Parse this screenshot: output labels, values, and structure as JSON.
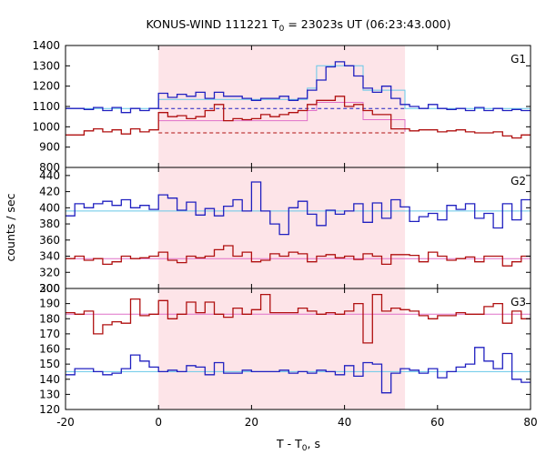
{
  "chart_data": {
    "type": "line",
    "title": "KONUS-WIND 111221 T",
    "title_sub": "0",
    "title_rest": " = 23023s UT (06:23:43.000)",
    "xlabel": "T - T",
    "xlabel_sub": "0",
    "xlabel_rest": ", s",
    "ylabel": "counts / sec",
    "xlim": [
      -20,
      80
    ],
    "xticks": [
      -20,
      0,
      20,
      40,
      60,
      80
    ],
    "shaded_interval": [
      0,
      53
    ],
    "colors": {
      "blue": "#2020c0",
      "red": "#b01010",
      "cyan": "#66c8e8",
      "pink": "#e070c8",
      "shade": "#fde4e8"
    },
    "panels": [
      {
        "label": "G1",
        "ylim": [
          800,
          1400
        ],
        "yticks": [
          800,
          900,
          1000,
          1100,
          1200,
          1300,
          1400
        ],
        "edges": [
          -20,
          -18,
          -16,
          -14,
          -12,
          -10,
          -8,
          -6,
          -4,
          -2,
          0,
          2,
          4,
          6,
          8,
          10,
          12,
          14,
          16,
          18,
          20,
          22,
          24,
          26,
          28,
          30,
          32,
          34,
          36,
          38,
          40,
          42,
          44,
          46,
          48,
          50,
          52,
          54,
          56,
          58,
          60,
          62,
          64,
          66,
          68,
          70,
          72,
          74,
          76,
          78,
          80
        ],
        "series": [
          {
            "color": "blue",
            "values": [
              1090,
              1090,
              1085,
              1095,
              1080,
              1095,
              1070,
              1090,
              1080,
              1090,
              1165,
              1145,
              1160,
              1150,
              1170,
              1140,
              1170,
              1150,
              1150,
              1140,
              1130,
              1140,
              1140,
              1150,
              1130,
              1140,
              1180,
              1230,
              1295,
              1320,
              1300,
              1250,
              1190,
              1170,
              1200,
              1140,
              1110,
              1100,
              1090,
              1110,
              1090,
              1085,
              1090,
              1080,
              1095,
              1080,
              1090,
              1080,
              1085,
              1080
            ]
          },
          {
            "color": "red",
            "values": [
              960,
              960,
              980,
              990,
              975,
              985,
              965,
              990,
              975,
              985,
              1070,
              1050,
              1055,
              1040,
              1050,
              1080,
              1110,
              1030,
              1040,
              1035,
              1040,
              1060,
              1050,
              1060,
              1070,
              1080,
              1110,
              1130,
              1130,
              1150,
              1100,
              1110,
              1080,
              1060,
              1060,
              990,
              990,
              980,
              985,
              985,
              975,
              980,
              985,
              975,
              970,
              970,
              975,
              955,
              945,
              960
            ]
          }
        ],
        "dashed_lines": [
          {
            "color": "blue",
            "from": 0,
            "to": 53,
            "y": 1090
          },
          {
            "color": "red",
            "from": 0,
            "to": 53,
            "y": 970
          }
        ],
        "fit_lines": [
          {
            "color": "cyan",
            "segments": [
              [
                -20,
                1090
              ],
              [
                0,
                1090
              ],
              [
                0,
                1135
              ],
              [
                32,
                1135
              ],
              [
                32,
                1190
              ],
              [
                34,
                1190
              ],
              [
                34,
                1300
              ],
              [
                44,
                1300
              ],
              [
                44,
                1180
              ],
              [
                53,
                1180
              ],
              [
                53,
                1090
              ],
              [
                80,
                1090
              ]
            ]
          },
          {
            "color": "pink",
            "segments": [
              [
                0,
                1030
              ],
              [
                32,
                1030
              ],
              [
                32,
                1080
              ],
              [
                34,
                1080
              ],
              [
                34,
                1120
              ],
              [
                44,
                1120
              ],
              [
                44,
                1035
              ],
              [
                53,
                1035
              ],
              [
                53,
                975
              ]
            ]
          }
        ]
      },
      {
        "label": "G2",
        "ylim": [
          300,
          450
        ],
        "yticks": [
          300,
          320,
          340,
          360,
          380,
          400,
          420,
          440
        ],
        "edges": [
          -20,
          -18,
          -16,
          -14,
          -12,
          -10,
          -8,
          -6,
          -4,
          -2,
          0,
          2,
          4,
          6,
          8,
          10,
          12,
          14,
          16,
          18,
          20,
          22,
          24,
          26,
          28,
          30,
          32,
          34,
          36,
          38,
          40,
          42,
          44,
          46,
          48,
          50,
          52,
          54,
          56,
          58,
          60,
          62,
          64,
          66,
          68,
          70,
          72,
          74,
          76,
          78,
          80
        ],
        "series": [
          {
            "color": "blue",
            "values": [
              390,
              405,
              400,
              405,
              408,
              403,
              410,
              400,
              403,
              398,
              416,
              412,
              397,
              407,
              391,
              399,
              390,
              402,
              410,
              396,
              432,
              396,
              380,
              367,
              400,
              408,
              392,
              378,
              397,
              392,
              396,
              405,
              382,
              406,
              387,
              410,
              401,
              383,
              389,
              393,
              385,
              403,
              398,
              405,
              387,
              393,
              375,
              405,
              385,
              410
            ]
          },
          {
            "color": "red",
            "values": [
              337,
              340,
              335,
              337,
              330,
              333,
              340,
              337,
              338,
              340,
              345,
              335,
              332,
              340,
              338,
              340,
              348,
              353,
              340,
              345,
              333,
              335,
              343,
              340,
              345,
              343,
              333,
              340,
              342,
              338,
              340,
              336,
              343,
              340,
              330,
              342,
              342,
              341,
              333,
              345,
              340,
              335,
              337,
              339,
              333,
              340,
              340,
              328,
              333,
              340
            ]
          }
        ],
        "dashed_lines": [],
        "fit_lines": [
          {
            "color": "cyan",
            "segments": [
              [
                -20,
                396
              ],
              [
                80,
                396
              ]
            ]
          },
          {
            "color": "pink",
            "segments": [
              [
                -20,
                337
              ],
              [
                80,
                337
              ]
            ]
          }
        ]
      },
      {
        "label": "G3",
        "ylim": [
          120,
          200
        ],
        "yticks": [
          120,
          130,
          140,
          150,
          160,
          170,
          180,
          190,
          200
        ],
        "edges": [
          -20,
          -18,
          -16,
          -14,
          -12,
          -10,
          -8,
          -6,
          -4,
          -2,
          0,
          2,
          4,
          6,
          8,
          10,
          12,
          14,
          16,
          18,
          20,
          22,
          24,
          26,
          28,
          30,
          32,
          34,
          36,
          38,
          40,
          42,
          44,
          46,
          48,
          50,
          52,
          54,
          56,
          58,
          60,
          62,
          64,
          66,
          68,
          70,
          72,
          74,
          76,
          78,
          80
        ],
        "series": [
          {
            "color": "blue",
            "values": [
              143,
              147,
              147,
              145,
              143,
              144,
              147,
              156,
              152,
              148,
              145,
              146,
              145,
              149,
              148,
              143,
              151,
              144,
              144,
              146,
              145,
              145,
              145,
              146,
              144,
              145,
              144,
              146,
              145,
              143,
              149,
              142,
              151,
              150,
              131,
              144,
              147,
              146,
              144,
              147,
              141,
              145,
              148,
              150,
              161,
              152,
              147,
              157,
              140,
              138
            ]
          },
          {
            "color": "red",
            "values": [
              184,
              183,
              185,
              170,
              176,
              178,
              177,
              193,
              182,
              183,
              192,
              180,
              183,
              191,
              184,
              191,
              183,
              181,
              187,
              183,
              186,
              196,
              184,
              184,
              184,
              187,
              185,
              183,
              184,
              183,
              185,
              190,
              164,
              196,
              185,
              187,
              186,
              185,
              182,
              180,
              182,
              182,
              184,
              183,
              183,
              188,
              190,
              177,
              185,
              180
            ]
          }
        ],
        "dashed_lines": [],
        "fit_lines": [
          {
            "color": "cyan",
            "segments": [
              [
                -20,
                145
              ],
              [
                80,
                145
              ]
            ]
          },
          {
            "color": "pink",
            "segments": [
              [
                -20,
                183
              ],
              [
                80,
                183
              ]
            ]
          }
        ]
      }
    ]
  }
}
